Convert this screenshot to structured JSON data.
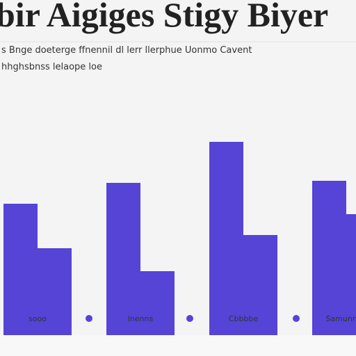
{
  "chart_data": {
    "type": "bar",
    "title": "bir Aigiges Stigy Biyer",
    "subtitle": [
      "s Bnge doeterge ffnennil dl lerr llerphue Uonmo Cavent",
      "hhghsbnss lelaope loe"
    ],
    "categories": [
      "sooo",
      "lnenns",
      "Cbbbbe",
      "Samunnne"
    ],
    "series": [
      {
        "color": "#5544d6",
        "values": [
          189,
          219,
          278,
          222
        ]
      },
      {
        "color": "#5544d6",
        "values": [
          125,
          92,
          144,
          174
        ]
      }
    ]
  }
}
